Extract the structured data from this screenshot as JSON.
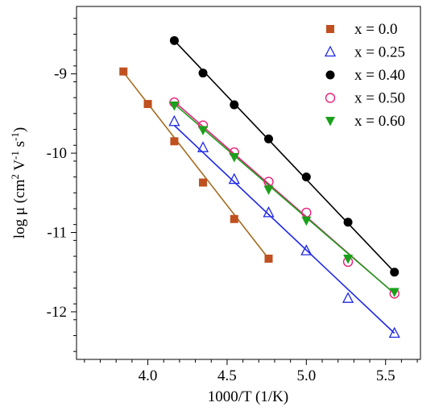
{
  "chart_data": {
    "type": "scatter",
    "title": "",
    "xlabel": "1000/T (1/K)",
    "ylabel": {
      "base": "log μ (cm",
      "sup1": "2",
      "mid1": " V",
      "sup2": "-1",
      "mid2": " s",
      "sup3": "-1",
      "end": ")"
    },
    "xlim": [
      3.55,
      5.72
    ],
    "ylim": [
      -12.6,
      -8.15
    ],
    "xticks": [
      4.0,
      4.5,
      5.0,
      5.5
    ],
    "xtick_labels": [
      "4.0",
      "4.5",
      "5.0",
      "5.5"
    ],
    "yticks": [
      -9,
      -10,
      -11,
      -12
    ],
    "ytick_labels": [
      "-9",
      "-10",
      "-11",
      "-12"
    ],
    "grid": false,
    "legend_position": "top-right",
    "series": [
      {
        "name": "x = 0.0",
        "marker": "square-filled",
        "color": "#c0501f",
        "line_color": "#a66a1e",
        "x": [
          3.846,
          4.0,
          4.167,
          4.348,
          4.545,
          4.762
        ],
        "y": [
          -8.97,
          -9.38,
          -9.85,
          -10.37,
          -10.83,
          -11.33
        ],
        "fit": [
          [
            3.846,
            -8.98
          ],
          [
            4.762,
            -11.33
          ]
        ]
      },
      {
        "name": "x = 0.25",
        "marker": "triangle-up-open",
        "color": "#1e28e6",
        "line_color": "#1e28e6",
        "x": [
          4.167,
          4.348,
          4.545,
          4.762,
          5.0,
          5.263,
          5.556
        ],
        "y": [
          -9.6,
          -9.93,
          -10.33,
          -10.75,
          -11.23,
          -11.83,
          -12.27
        ],
        "fit": [
          [
            4.167,
            -9.65
          ],
          [
            5.556,
            -12.27
          ]
        ]
      },
      {
        "name": "x = 0.40",
        "marker": "circle-filled",
        "color": "#000000",
        "line_color": "#000000",
        "x": [
          4.167,
          4.348,
          4.545,
          4.762,
          5.0,
          5.263,
          5.556
        ],
        "y": [
          -8.58,
          -8.99,
          -9.39,
          -9.82,
          -10.3,
          -10.87,
          -11.5
        ],
        "fit": [
          [
            4.167,
            -8.58
          ],
          [
            5.556,
            -11.5
          ]
        ]
      },
      {
        "name": "x = 0.50",
        "marker": "circle-open",
        "color": "#e8207a",
        "line_color": "#e8207a",
        "x": [
          4.167,
          4.348,
          4.545,
          4.762,
          5.0,
          5.263,
          5.556
        ],
        "y": [
          -9.36,
          -9.65,
          -9.99,
          -10.36,
          -10.75,
          -11.37,
          -11.77
        ],
        "fit": [
          [
            4.167,
            -9.35
          ],
          [
            5.556,
            -11.77
          ]
        ]
      },
      {
        "name": "x = 0.60",
        "marker": "triangle-down-filled",
        "color": "#1aa01a",
        "line_color": "#1aa01a",
        "x": [
          4.167,
          4.348,
          4.545,
          4.762,
          5.0,
          5.263,
          5.556
        ],
        "y": [
          -9.4,
          -9.71,
          -10.05,
          -10.46,
          -10.85,
          -11.33,
          -11.75
        ],
        "fit": [
          [
            4.167,
            -9.38
          ],
          [
            5.556,
            -11.77
          ]
        ]
      }
    ]
  }
}
